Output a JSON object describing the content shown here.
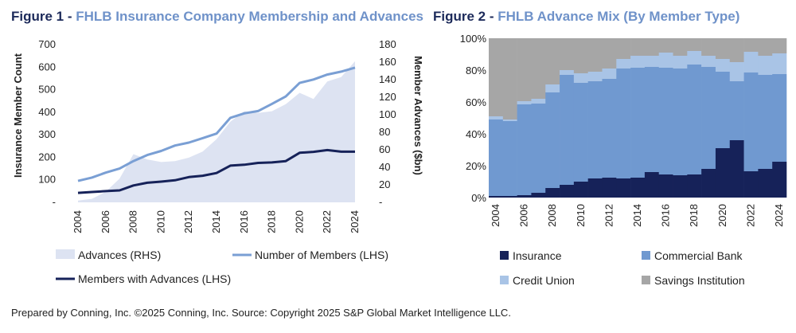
{
  "figure1": {
    "title_prefix": "Figure 1 - ",
    "title": "FHLB Insurance Company Membership and Advances",
    "left_axis_title": "Insurance Member Count",
    "right_axis_title": "Member Advances ($bn)"
  },
  "figure2": {
    "title_prefix": "Figure 2 - ",
    "title": "FHLB Advance Mix (By Member Type)"
  },
  "source": "Prepared by Conning, Inc. ©2025 Conning, Inc. Source: Copyright 2025 S&P Global Market Intelligence LLC.",
  "chart_data": [
    {
      "type": "line",
      "x": [
        2004,
        2005,
        2006,
        2007,
        2008,
        2009,
        2010,
        2011,
        2012,
        2013,
        2014,
        2015,
        2016,
        2017,
        2018,
        2019,
        2020,
        2021,
        2022,
        2023,
        2024
      ],
      "x_tick_labels": [
        "2004",
        "2006",
        "2008",
        "2010",
        "2012",
        "2014",
        "2016",
        "2018",
        "2020",
        "2022",
        "2024"
      ],
      "y_left_ticks": [
        "-",
        "100",
        "200",
        "300",
        "400",
        "500",
        "600",
        "700"
      ],
      "y_right_ticks": [
        "-",
        "20",
        "40",
        "60",
        "80",
        "100",
        "120",
        "140",
        "160",
        "180"
      ],
      "ylim_left": [
        0,
        700
      ],
      "ylim_right": [
        0,
        180
      ],
      "series": [
        {
          "name": "Advances (RHS)",
          "kind": "area",
          "axis": "right",
          "color": "#dde3f2",
          "values": [
            2,
            4,
            12,
            27,
            55,
            49,
            46,
            47,
            51,
            58,
            72,
            92,
            104,
            102,
            104,
            112,
            125,
            118,
            138,
            143,
            161
          ]
        },
        {
          "name": "Number of Members (LHS)",
          "kind": "line",
          "axis": "left",
          "color": "#7a9fd4",
          "values": [
            95,
            110,
            132,
            150,
            183,
            210,
            228,
            252,
            265,
            285,
            305,
            375,
            395,
            405,
            437,
            470,
            530,
            545,
            567,
            580,
            598
          ]
        },
        {
          "name": "Members with Advances (LHS)",
          "kind": "line",
          "axis": "left",
          "color": "#162259",
          "values": [
            42,
            46,
            50,
            53,
            75,
            87,
            92,
            98,
            112,
            118,
            130,
            163,
            167,
            175,
            177,
            183,
            220,
            224,
            232,
            225,
            225
          ]
        }
      ],
      "legend": "bottom"
    },
    {
      "type": "bar",
      "stacked": true,
      "categories": [
        "2004",
        "2005",
        "2006",
        "2007",
        "2008",
        "2009",
        "2010",
        "2011",
        "2012",
        "2013",
        "2014",
        "2015",
        "2016",
        "2017",
        "2018",
        "2019",
        "2020",
        "2021",
        "2022",
        "2023",
        "2024"
      ],
      "x_tick_labels": [
        "2004",
        "2006",
        "2008",
        "2010",
        "2012",
        "2014",
        "2016",
        "2018",
        "2020",
        "2022",
        "2024"
      ],
      "y_ticks": [
        "0%",
        "20%",
        "40%",
        "60%",
        "80%",
        "100%"
      ],
      "ylim": [
        0,
        100
      ],
      "series": [
        {
          "name": "Insurance",
          "color": "#162259",
          "values": [
            1,
            1,
            1.5,
            3,
            6,
            8,
            10,
            12,
            12.5,
            12,
            12.5,
            16,
            14.5,
            14,
            14.5,
            18,
            31,
            36,
            16.5,
            18,
            22.5
          ]
        },
        {
          "name": "Commercial Bank",
          "color": "#7099d0",
          "values": [
            48,
            47,
            57,
            56,
            60,
            69,
            62,
            61,
            62,
            69,
            69,
            66,
            67,
            67,
            69,
            64,
            48,
            37,
            62,
            59,
            55
          ]
        },
        {
          "name": "Credit Union",
          "color": "#a9c4e6",
          "values": [
            2,
            1,
            2,
            3,
            5,
            3,
            6,
            6,
            6.5,
            6,
            7.5,
            7,
            9.5,
            8,
            8.5,
            7,
            8,
            12,
            13,
            12,
            13
          ]
        },
        {
          "name": "Savings Institution",
          "color": "#a6a6a6",
          "values": [
            49,
            51,
            39.5,
            38,
            29,
            20,
            22,
            21,
            19,
            13,
            11,
            11,
            9,
            11,
            8,
            11,
            13,
            15,
            8.5,
            11,
            9.5
          ]
        }
      ],
      "legend": "bottom"
    }
  ]
}
